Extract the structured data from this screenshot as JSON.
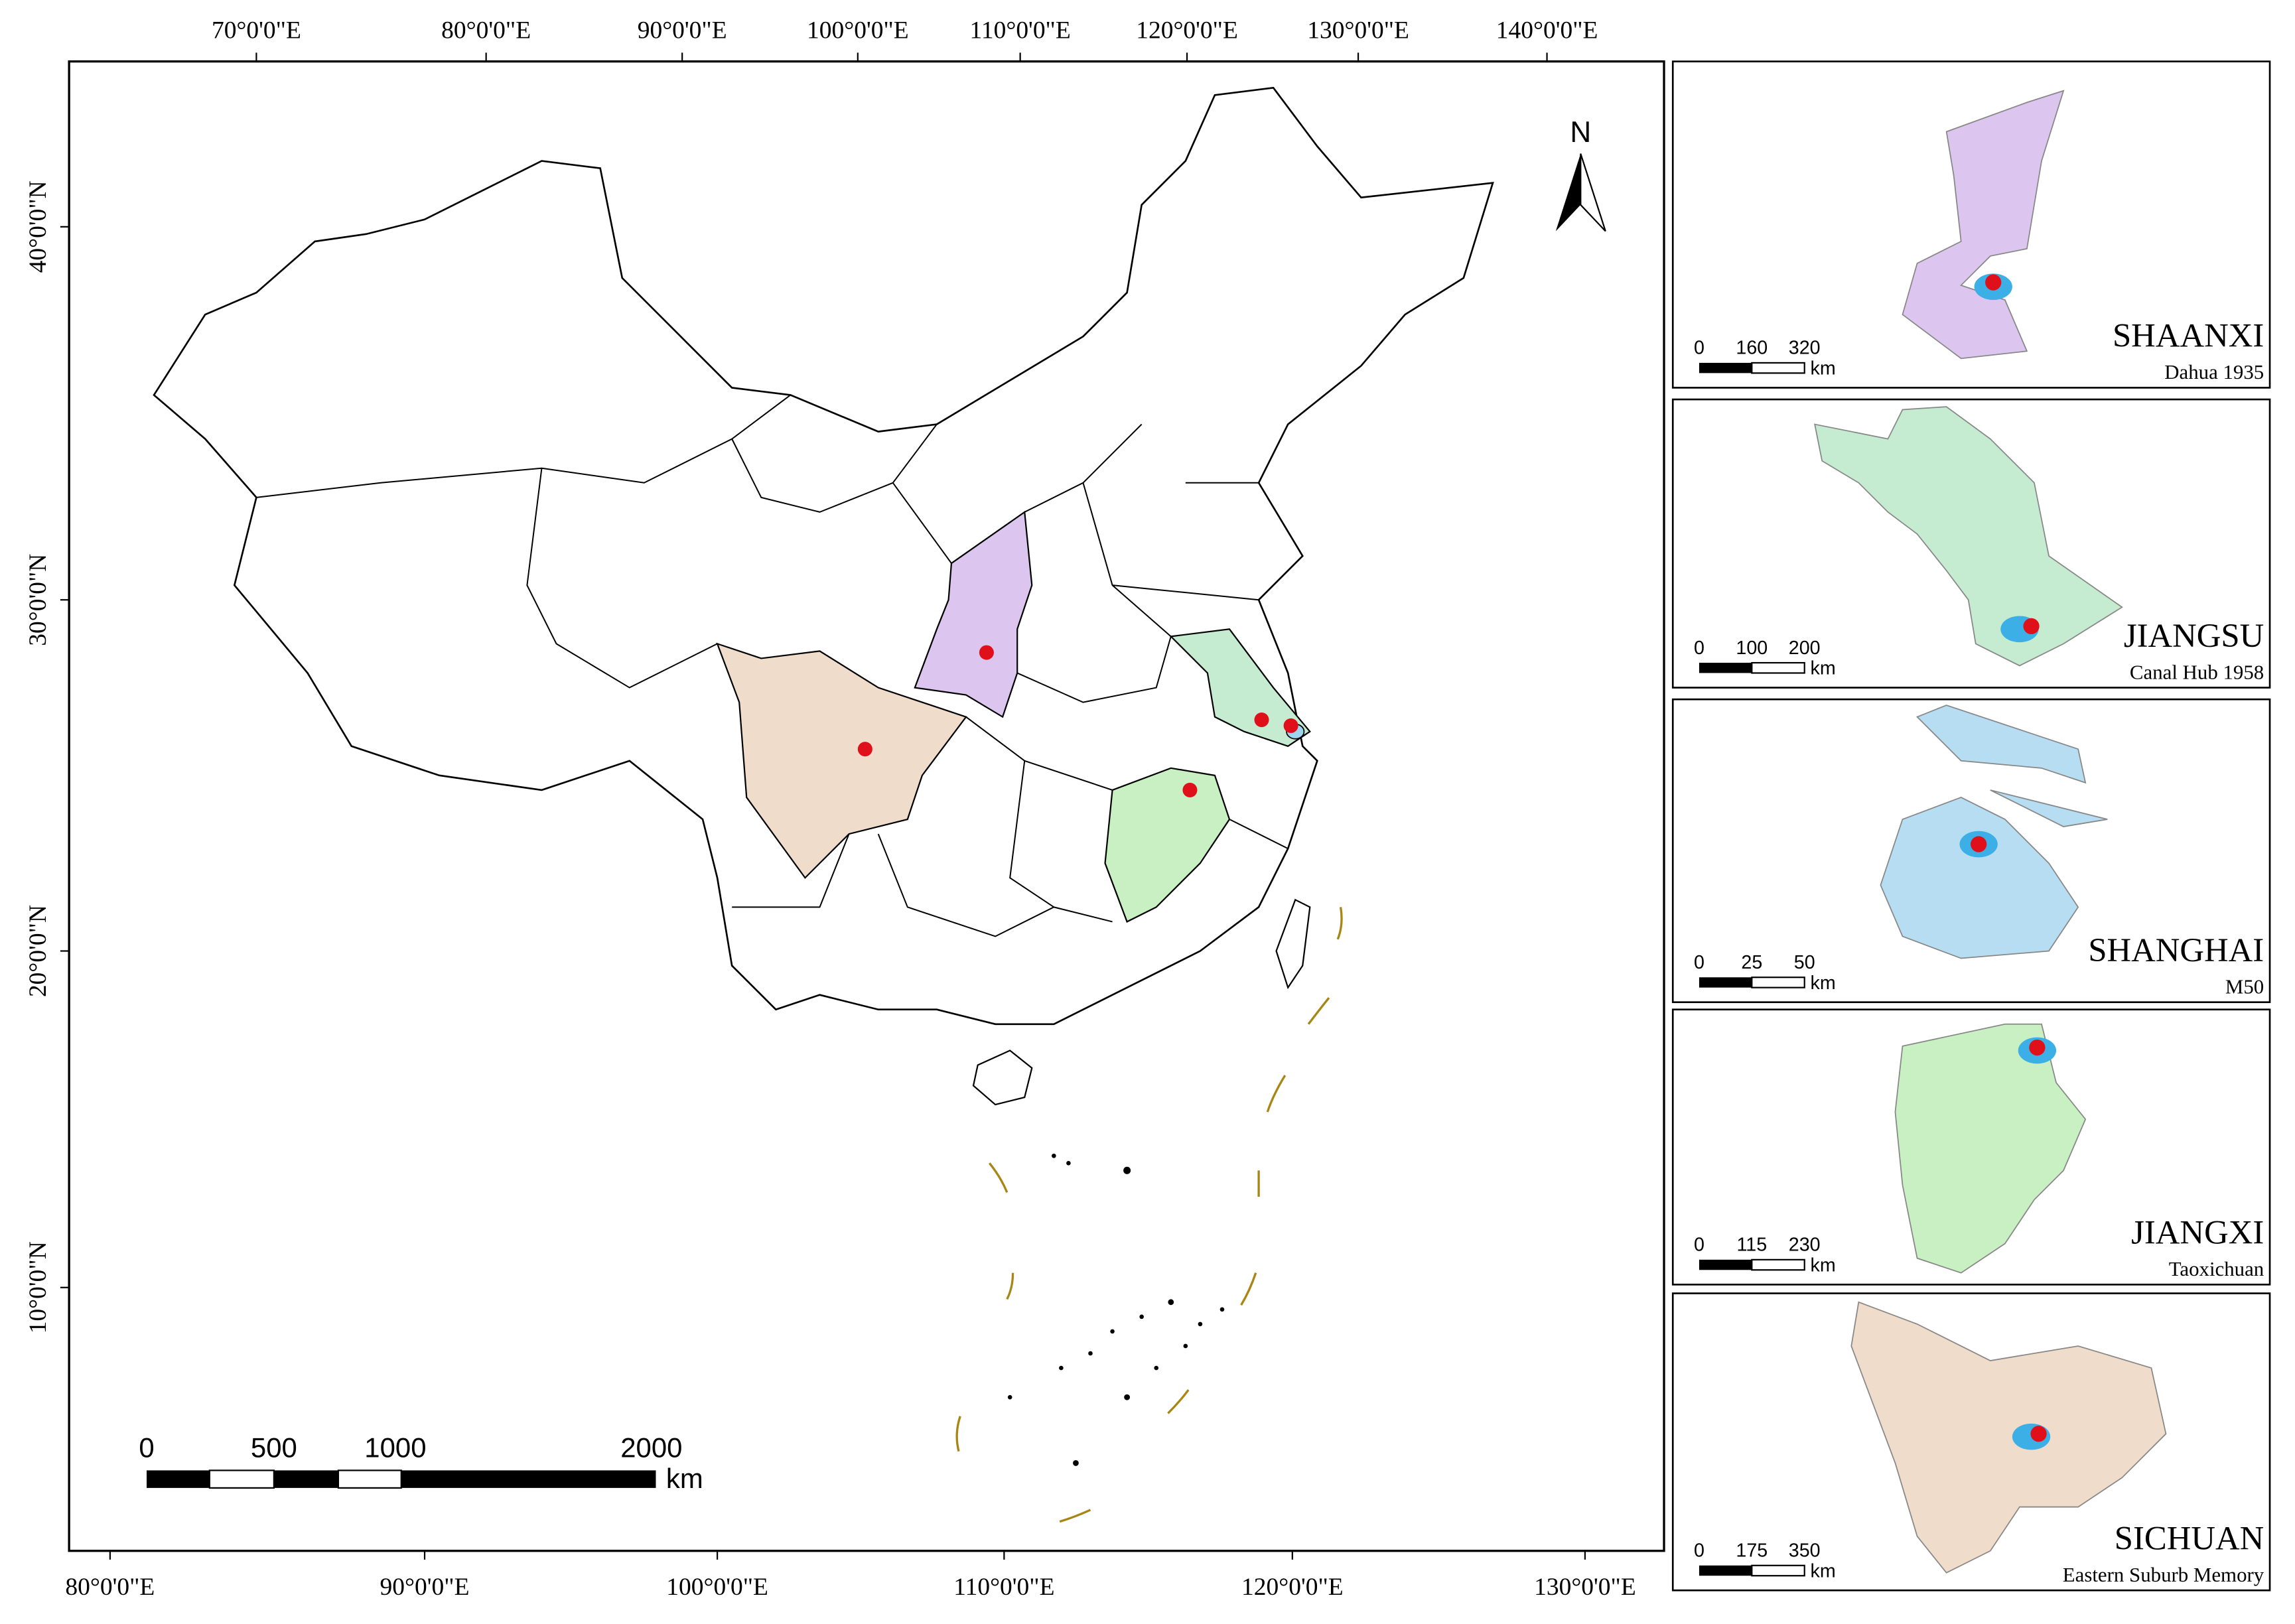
{
  "map": {
    "top_ticks": [
      "70°0'0\"E",
      "80°0'0\"E",
      "90°0'0\"E",
      "100°0'0\"E",
      "110°0'0\"E",
      "120°0'0\"E",
      "130°0'0\"E",
      "140°0'0\"E"
    ],
    "bottom_ticks": [
      "80°0'0\"E",
      "90°0'0\"E",
      "100°0'0\"E",
      "110°0'0\"E",
      "120°0'0\"E",
      "130°0'0\"E"
    ],
    "left_ticks": [
      "40°0'0\"N",
      "30°0'0\"N",
      "20°0'0\"N",
      "10°0'0\"N"
    ],
    "north": "N",
    "scale_bar": {
      "labels": [
        "0",
        "500",
        "1000",
        "2000"
      ],
      "unit": "km"
    },
    "insets": [
      {
        "province": "SHAANXI",
        "site": "Dahua 1935",
        "scale_labels": [
          "0",
          "160",
          "320"
        ],
        "unit": "km"
      },
      {
        "province": "JIANGSU",
        "site": "Canal Hub 1958",
        "scale_labels": [
          "0",
          "100",
          "200"
        ],
        "unit": "km"
      },
      {
        "province": "SHANGHAI",
        "site": "M50",
        "scale_labels": [
          "0",
          "25",
          "50"
        ],
        "unit": "km"
      },
      {
        "province": "JIANGXI",
        "site": "Taoxichuan",
        "scale_labels": [
          "0",
          "115",
          "230"
        ],
        "unit": "km"
      },
      {
        "province": "SICHUAN",
        "site": "Eastern Suburb Memory",
        "scale_labels": [
          "0",
          "175",
          "350"
        ],
        "unit": "km"
      }
    ]
  }
}
